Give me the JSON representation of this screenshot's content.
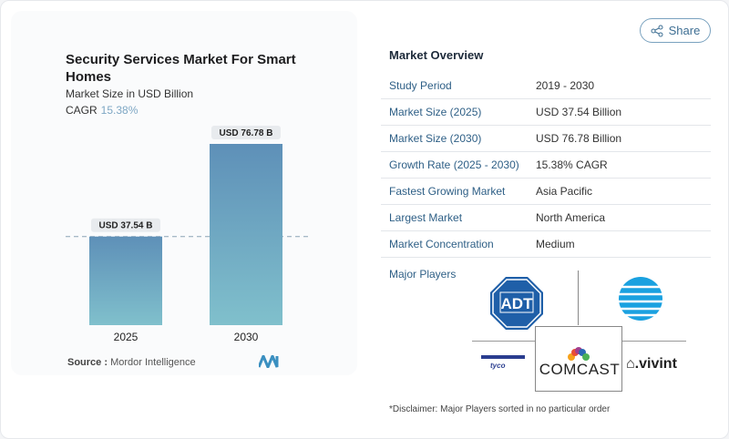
{
  "chart_data": {
    "type": "bar",
    "title": "Security Services Market For Smart Homes",
    "subtitle": "Market Size in USD Billion",
    "cagr_label": "CAGR",
    "cagr_value": "15.38%",
    "categories": [
      "2025",
      "2030"
    ],
    "values": [
      37.54,
      76.78
    ],
    "data_labels": [
      "USD 37.54 B",
      "USD 76.78 B"
    ],
    "ylim": [
      0,
      76.78
    ],
    "grid": false,
    "bar_color": "#6a9fc0"
  },
  "source": {
    "label": "Source :",
    "value": "Mordor Intelligence"
  },
  "share_label": "Share",
  "overview": {
    "title": "Market Overview",
    "rows": [
      {
        "k": "Study Period",
        "v": "2019 - 2030"
      },
      {
        "k": "Market Size (2025)",
        "v": "USD 37.54 Billion"
      },
      {
        "k": "Market Size (2030)",
        "v": "USD 76.78 Billion"
      },
      {
        "k": "Growth Rate (2025 - 2030)",
        "v": "15.38% CAGR"
      },
      {
        "k": "Fastest Growing Market",
        "v": "Asia Pacific"
      },
      {
        "k": "Largest Market",
        "v": "North America"
      },
      {
        "k": "Market Concentration",
        "v": "Medium"
      }
    ],
    "major_players_label": "Major Players",
    "players": [
      "ADT",
      "AT&T",
      "tyco",
      "COMCAST",
      "vivint"
    ]
  },
  "disclaimer": "*Disclaimer: Major Players sorted in no particular order"
}
